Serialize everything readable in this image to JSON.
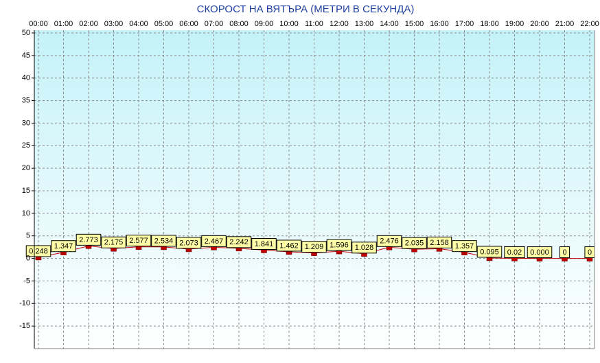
{
  "chart_data": {
    "type": "line",
    "title": "СКОРОСТ НА ВЯТЪРА (МЕТРИ В СЕКУНДА)",
    "categories": [
      "00:00",
      "01:00",
      "02:00",
      "03:00",
      "04:00",
      "05:00",
      "06:00",
      "07:00",
      "08:00",
      "09:00",
      "10:00",
      "11:00",
      "12:00",
      "13:00",
      "14:00",
      "15:00",
      "16:00",
      "17:00",
      "18:00",
      "19:00",
      "20:00",
      "21:00",
      "22:00"
    ],
    "values": [
      0.248,
      1.347,
      2.773,
      2.175,
      2.577,
      2.534,
      2.073,
      2.467,
      2.242,
      1.841,
      1.462,
      1.209,
      1.596,
      1.028,
      2.476,
      2.035,
      2.158,
      1.357,
      0.095,
      0.02,
      0,
      0,
      0
    ],
    "value_labels": [
      "0.248",
      "1.347",
      "2.773",
      "2.175",
      "2.577",
      "2.534",
      "2.073",
      "2.467",
      "2.242",
      "1.841",
      "1.462",
      "1.209",
      "1.596",
      "1.028",
      "2.476",
      "2.035",
      "2.158",
      "1.357",
      "0.095",
      "0.02",
      "0.000",
      "0",
      "0"
    ],
    "color": "#c00000",
    "ylim": [
      -20,
      50
    ],
    "yticks": [
      -15,
      -10,
      -5,
      0,
      5,
      10,
      15,
      20,
      25,
      30,
      35,
      40,
      45,
      50
    ],
    "grid": true
  }
}
